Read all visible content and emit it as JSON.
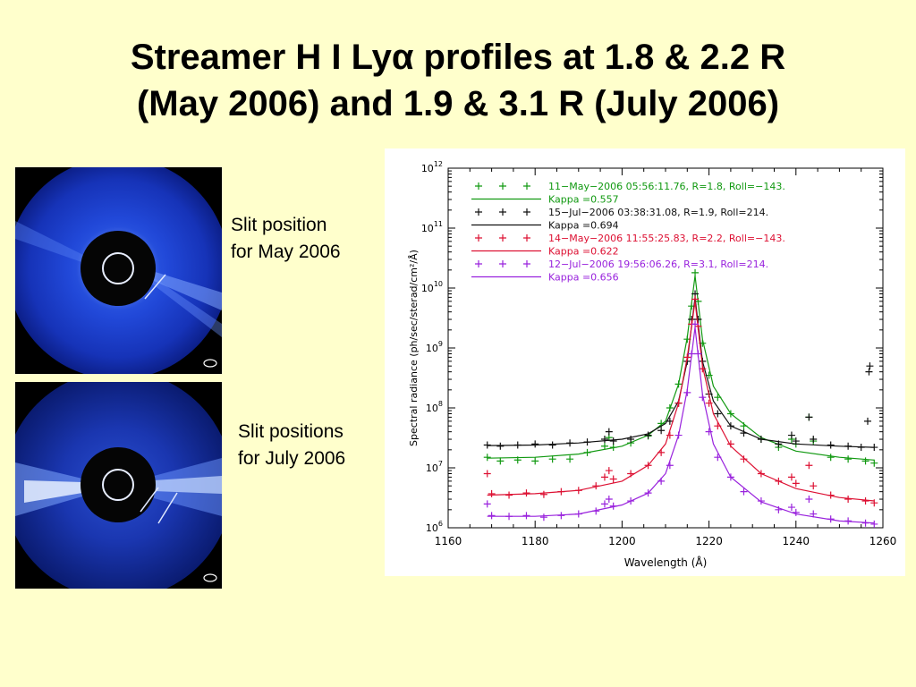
{
  "slide": {
    "title_line1": "Streamer H I Lyα profiles at 1.8 & 2.2 R",
    "title_line2": "(May 2006) and 1.9 & 3.1 R (July 2006)",
    "caption_may_line1": "Slit position",
    "caption_may_line2": "for May 2006",
    "caption_july_line1": "Slit positions",
    "caption_july_line2": "for July 2006"
  },
  "colors": {
    "background": "#ffffcc",
    "may_18": "#119911",
    "jul_19": "#111111",
    "may_22": "#dd1133",
    "jul_31": "#9922dd"
  },
  "chart_data": {
    "type": "scatter",
    "title": "",
    "xlabel": "Wavelength (Å)",
    "ylabel": "Spectral radiance (ph/sec/sterad/cm²/Å)",
    "xlim": [
      1160,
      1260
    ],
    "ylim": [
      1000000,
      1000000000000
    ],
    "yscale": "log",
    "x_ticks": [
      "1160",
      "1180",
      "1200",
      "1220",
      "1240",
      "1260"
    ],
    "y_ticks": [
      {
        "base": "10",
        "exp": "6"
      },
      {
        "base": "10",
        "exp": "7"
      },
      {
        "base": "10",
        "exp": "8"
      },
      {
        "base": "10",
        "exp": "9"
      },
      {
        "base": "10",
        "exp": "10"
      },
      {
        "base": "10",
        "exp": "11"
      },
      {
        "base": "10",
        "exp": "12"
      }
    ],
    "legend_position": "top-left",
    "series": [
      {
        "name": "11−May−2006 05:56:11.76, R=1.8, Roll=−143.",
        "fit_label": "Kappa =0.557",
        "color": "#119911",
        "points": [
          [
            1169,
            15000000.0
          ],
          [
            1172,
            13000000.0
          ],
          [
            1176,
            13500000.0
          ],
          [
            1180,
            13000000.0
          ],
          [
            1184,
            14000000.0
          ],
          [
            1188,
            14000000.0
          ],
          [
            1192,
            18000000.0
          ],
          [
            1196,
            23000000.0
          ],
          [
            1197,
            32000000.0
          ],
          [
            1198,
            22000000.0
          ],
          [
            1202,
            26000000.0
          ],
          [
            1206,
            34000000.0
          ],
          [
            1209,
            55000000.0
          ],
          [
            1211,
            100000000.0
          ],
          [
            1213,
            250000000.0
          ],
          [
            1215,
            1400000000.0
          ],
          [
            1216,
            5000000000.0
          ],
          [
            1216.8,
            18000000000.0
          ],
          [
            1217.5,
            6000000000.0
          ],
          [
            1218.5,
            1200000000.0
          ],
          [
            1220,
            350000000.0
          ],
          [
            1222,
            150000000.0
          ],
          [
            1225,
            80000000.0
          ],
          [
            1228,
            50000000.0
          ],
          [
            1232,
            30000000.0
          ],
          [
            1236,
            22000000.0
          ],
          [
            1239,
            30000000.0
          ],
          [
            1240,
            25000000.0
          ],
          [
            1243,
            70000000.0
          ],
          [
            1244,
            28000000.0
          ],
          [
            1248,
            15000000.0
          ],
          [
            1252,
            14000000.0
          ],
          [
            1256,
            13000000.0
          ],
          [
            1258,
            12000000.0
          ]
        ],
        "fit": [
          [
            1169,
            14500000.0
          ],
          [
            1180,
            15000000.0
          ],
          [
            1190,
            17000000.0
          ],
          [
            1200,
            23000000.0
          ],
          [
            1206,
            35000000.0
          ],
          [
            1210,
            60000000.0
          ],
          [
            1213,
            250000000.0
          ],
          [
            1215,
            1500000000.0
          ],
          [
            1216.8,
            16000000000.0
          ],
          [
            1218.5,
            1400000000.0
          ],
          [
            1221,
            230000000.0
          ],
          [
            1225,
            80000000.0
          ],
          [
            1232,
            32000000.0
          ],
          [
            1240,
            19000000.0
          ],
          [
            1250,
            15000000.0
          ],
          [
            1258,
            13500000.0
          ]
        ]
      },
      {
        "name": "15−Jul−2006 03:38:31.08, R=1.9, Roll=214.",
        "fit_label": "Kappa =0.694",
        "color": "#111111",
        "points": [
          [
            1169,
            24000000.0
          ],
          [
            1172,
            23000000.0
          ],
          [
            1176,
            24000000.0
          ],
          [
            1180,
            25000000.0
          ],
          [
            1184,
            24000000.0
          ],
          [
            1188,
            26000000.0
          ],
          [
            1192,
            27000000.0
          ],
          [
            1196,
            30000000.0
          ],
          [
            1197,
            40000000.0
          ],
          [
            1198,
            28000000.0
          ],
          [
            1202,
            30000000.0
          ],
          [
            1206,
            35000000.0
          ],
          [
            1209,
            42000000.0
          ],
          [
            1211,
            60000000.0
          ],
          [
            1213,
            120000000.0
          ],
          [
            1215,
            600000000.0
          ],
          [
            1216,
            3000000000.0
          ],
          [
            1216.8,
            8000000000.0
          ],
          [
            1217.5,
            3000000000.0
          ],
          [
            1218.5,
            600000000.0
          ],
          [
            1220,
            170000000.0
          ],
          [
            1222,
            80000000.0
          ],
          [
            1225,
            50000000.0
          ],
          [
            1228,
            38000000.0
          ],
          [
            1232,
            30000000.0
          ],
          [
            1236,
            25000000.0
          ],
          [
            1239,
            35000000.0
          ],
          [
            1240,
            28000000.0
          ],
          [
            1243,
            70000000.0
          ],
          [
            1244,
            30000000.0
          ],
          [
            1248,
            24000000.0
          ],
          [
            1252,
            23000000.0
          ],
          [
            1255,
            22000000.0
          ],
          [
            1256.5,
            60000000.0
          ],
          [
            1256.8,
            400000000.0
          ],
          [
            1257,
            500000000.0
          ],
          [
            1258,
            22000000.0
          ]
        ],
        "fit": [
          [
            1169,
            23500000.0
          ],
          [
            1180,
            24000000.0
          ],
          [
            1190,
            26000000.0
          ],
          [
            1200,
            30000000.0
          ],
          [
            1206,
            37000000.0
          ],
          [
            1210,
            55000000.0
          ],
          [
            1213,
            130000000.0
          ],
          [
            1215,
            600000000.0
          ],
          [
            1216.8,
            7000000000.0
          ],
          [
            1218.5,
            600000000.0
          ],
          [
            1221,
            130000000.0
          ],
          [
            1225,
            50000000.0
          ],
          [
            1232,
            30000000.0
          ],
          [
            1240,
            25000000.0
          ],
          [
            1250,
            23000000.0
          ],
          [
            1258,
            22000000.0
          ]
        ]
      },
      {
        "name": "14−May−2006 11:55:25.83, R=2.2, Roll=−143.",
        "fit_label": "Kappa =0.622",
        "color": "#dd1133",
        "points": [
          [
            1169,
            8000000.0
          ],
          [
            1170,
            3700000.0
          ],
          [
            1174,
            3500000.0
          ],
          [
            1178,
            3800000.0
          ],
          [
            1182,
            3600000.0
          ],
          [
            1186,
            4000000.0
          ],
          [
            1190,
            4200000.0
          ],
          [
            1194,
            5000000.0
          ],
          [
            1196,
            7000000.0
          ],
          [
            1197,
            9000000.0
          ],
          [
            1198,
            6500000.0
          ],
          [
            1202,
            8000000.0
          ],
          [
            1206,
            11000000.0
          ],
          [
            1209,
            18000000.0
          ],
          [
            1211,
            35000000.0
          ],
          [
            1213,
            120000000.0
          ],
          [
            1215,
            700000000.0
          ],
          [
            1216,
            2500000000.0
          ],
          [
            1216.8,
            6500000000.0
          ],
          [
            1217.5,
            2300000000.0
          ],
          [
            1218.5,
            450000000.0
          ],
          [
            1220,
            120000000.0
          ],
          [
            1222,
            50000000.0
          ],
          [
            1225,
            25000000.0
          ],
          [
            1228,
            14000000.0
          ],
          [
            1232,
            8000000.0
          ],
          [
            1236,
            6000000.0
          ],
          [
            1239,
            7000000.0
          ],
          [
            1240,
            5500000.0
          ],
          [
            1243,
            11000000.0
          ],
          [
            1244,
            5000000.0
          ],
          [
            1248,
            3500000.0
          ],
          [
            1252,
            3000000.0
          ],
          [
            1256,
            2800000.0
          ],
          [
            1258,
            2600000.0
          ]
        ],
        "fit": [
          [
            1169,
            3500000.0
          ],
          [
            1180,
            3700000.0
          ],
          [
            1190,
            4200000.0
          ],
          [
            1200,
            6000000.0
          ],
          [
            1206,
            11000000.0
          ],
          [
            1210,
            25000000.0
          ],
          [
            1213,
            120000000.0
          ],
          [
            1215,
            700000000.0
          ],
          [
            1216.8,
            6000000000.0
          ],
          [
            1218.5,
            500000000.0
          ],
          [
            1221,
            80000000.0
          ],
          [
            1225,
            23000000.0
          ],
          [
            1232,
            8000000.0
          ],
          [
            1240,
            4500000.0
          ],
          [
            1250,
            3200000.0
          ],
          [
            1258,
            2800000.0
          ]
        ]
      },
      {
        "name": "12−Jul−2006 19:56:06.26, R=3.1, Roll=214.",
        "fit_label": "Kappa =0.656",
        "color": "#9922dd",
        "points": [
          [
            1169,
            2500000.0
          ],
          [
            1170,
            1600000.0
          ],
          [
            1174,
            1550000.0
          ],
          [
            1178,
            1600000.0
          ],
          [
            1182,
            1500000.0
          ],
          [
            1186,
            1600000.0
          ],
          [
            1190,
            1700000.0
          ],
          [
            1194,
            1900000.0
          ],
          [
            1196,
            2500000.0
          ],
          [
            1197,
            3000000.0
          ],
          [
            1198,
            2300000.0
          ],
          [
            1202,
            2800000.0
          ],
          [
            1206,
            3800000.0
          ],
          [
            1209,
            6000000.0
          ],
          [
            1211,
            11000000.0
          ],
          [
            1213,
            35000000.0
          ],
          [
            1215,
            180000000.0
          ],
          [
            1216,
            800000000.0
          ],
          [
            1216.8,
            2500000000.0
          ],
          [
            1217.5,
            800000000.0
          ],
          [
            1218.5,
            150000000.0
          ],
          [
            1220,
            40000000.0
          ],
          [
            1222,
            15000000.0
          ],
          [
            1225,
            7000000.0
          ],
          [
            1228,
            4000000.0
          ],
          [
            1232,
            2800000.0
          ],
          [
            1236,
            2000000.0
          ],
          [
            1239,
            2200000.0
          ],
          [
            1240,
            1800000.0
          ],
          [
            1243,
            3000000.0
          ],
          [
            1244,
            1700000.0
          ],
          [
            1248,
            1400000.0
          ],
          [
            1252,
            1300000.0
          ],
          [
            1256,
            1200000.0
          ],
          [
            1258,
            1150000.0
          ]
        ],
        "fit": [
          [
            1169,
            1550000.0
          ],
          [
            1180,
            1550000.0
          ],
          [
            1190,
            1700000.0
          ],
          [
            1200,
            2400000.0
          ],
          [
            1206,
            3800000.0
          ],
          [
            1210,
            8000000.0
          ],
          [
            1213,
            35000000.0
          ],
          [
            1215,
            200000000.0
          ],
          [
            1216.8,
            2200000000.0
          ],
          [
            1218.5,
            170000000.0
          ],
          [
            1221,
            25000000.0
          ],
          [
            1225,
            7000000.0
          ],
          [
            1232,
            2700000.0
          ],
          [
            1240,
            1700000.0
          ],
          [
            1250,
            1300000.0
          ],
          [
            1258,
            1200000.0
          ]
        ]
      }
    ]
  }
}
